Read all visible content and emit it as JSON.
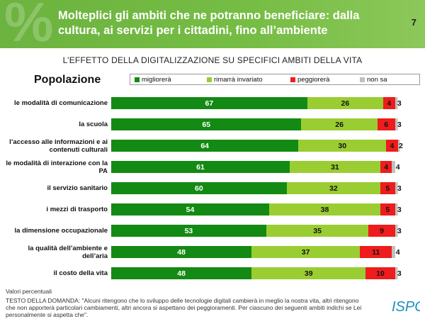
{
  "header": {
    "title": "Molteplici gli ambiti che ne potranno beneficiare: dalla cultura, ai servizi per i cittadini, fino all’ambiente",
    "page_number": "7"
  },
  "colors": {
    "header_green": "#6cb33f",
    "migliorera": "#138a13",
    "rimarra_invariato": "#9acd32",
    "peggiorera": "#ee1c1c",
    "non_sa": "#c0c0c0"
  },
  "chart_data": {
    "type": "bar",
    "orientation": "horizontal",
    "stacked": true,
    "normalized_100": true,
    "title": "L’EFFETTO DELLA DIGITALIZZAZIONE SU SPECIFICI AMBITI DELLA VITA",
    "section_label": "Popolazione",
    "legend_placement": "top",
    "categories": [
      "le modalità di comunicazione",
      "la scuola",
      "l’accesso alle informazioni e ai contenuti culturali",
      "le modalità di interazione con la PA",
      "il servizio sanitario",
      "i mezzi di trasporto",
      "la dimensione occupazionale",
      "la qualità dell’ambiente e dell’aria",
      "il costo della vita"
    ],
    "series": [
      {
        "name": "migliorerà",
        "color": "#138a13",
        "values": [
          67,
          65,
          64,
          61,
          60,
          54,
          53,
          48,
          48
        ]
      },
      {
        "name": "rimarrà invariato",
        "color": "#9acd32",
        "values": [
          26,
          26,
          30,
          31,
          32,
          38,
          35,
          37,
          39
        ]
      },
      {
        "name": "peggiorerà",
        "color": "#ee1c1c",
        "values": [
          4,
          6,
          4,
          4,
          5,
          5,
          9,
          11,
          10
        ]
      },
      {
        "name": "non sa",
        "color": "#c0c0c0",
        "values": [
          3,
          3,
          2,
          4,
          3,
          3,
          3,
          4,
          3
        ]
      }
    ]
  },
  "footer": {
    "note": "Valori percentuali",
    "question": "TESTO DELLA DOMANDA: \"Alcuni ritengono che lo sviluppo delle tecnologie digitali cambierà in meglio la nostra vita, altri ritengono che non apporterà particolari cambiamenti, altri ancora si aspettano dei peggioramenti. Per ciascuno dei seguenti ambiti indichi se Lei personalmente si aspetta che\".",
    "logo_text": "ISPO"
  }
}
